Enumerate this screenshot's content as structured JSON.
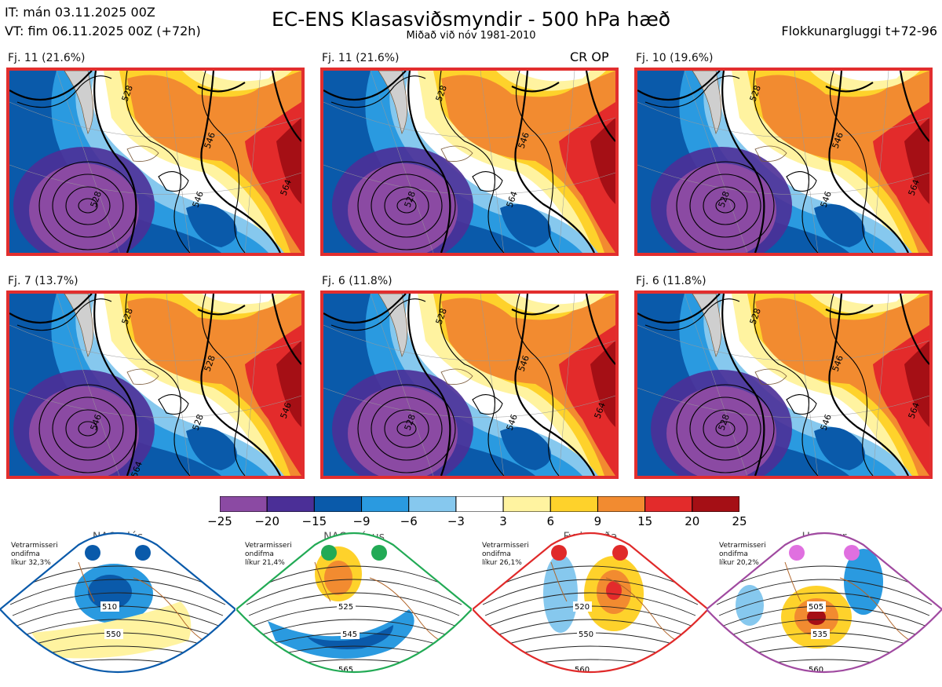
{
  "header": {
    "it_time": "IT: mán 03.11.2025 00Z",
    "vt_time": "VT: fim 06.11.2025 00Z  (+72h)",
    "title": "EC-ENS Klasasviðsmyndir - 500 hPa hæð",
    "subtitle": "Miðað við nóv 1981-2010",
    "window": "Flokkunargluggi t+72-96"
  },
  "cr_op": "CR OP",
  "panels": [
    {
      "label": "Fj. 11 (21.6%)",
      "contours": [
        "528",
        "546",
        "528",
        "546",
        "564"
      ]
    },
    {
      "label": "Fj. 11 (21.6%)",
      "contours": [
        "528",
        "546",
        "528",
        "564"
      ]
    },
    {
      "label": "Fj. 10 (19.6%)",
      "contours": [
        "528",
        "546",
        "528",
        "546",
        "564"
      ]
    },
    {
      "label": "Fj. 7 (13.7%)",
      "contours": [
        "528",
        "528",
        "546",
        "528",
        "546",
        "564"
      ]
    },
    {
      "label": "Fj. 6 (11.8%)",
      "contours": [
        "528",
        "546",
        "528",
        "546",
        "564"
      ]
    },
    {
      "label": "Fj. 6 (11.8%)",
      "contours": [
        "528",
        "546",
        "528",
        "546",
        "564"
      ]
    }
  ],
  "colorbar": {
    "ticks": [
      "−25",
      "−20",
      "−15",
      "−9",
      "−6",
      "−3",
      "3",
      "6",
      "9",
      "15",
      "20",
      "25"
    ],
    "colors": [
      "#8b4aa3",
      "#4b2f97",
      "#0a5aaa",
      "#2a9ae0",
      "#86c8ee",
      "#ffffff",
      "#fff3a0",
      "#fed22b",
      "#f28b30",
      "#e32b2b",
      "#a50f15"
    ]
  },
  "regimes": [
    {
      "name": "NAO plús",
      "note": [
        "Vetrarmisseri",
        "ondifma",
        "líkur 32,3%"
      ],
      "color": "#0a5aaa",
      "contours": [
        "510",
        "550"
      ]
    },
    {
      "name": "NAO mínus",
      "note": [
        "Vetrarmisseri",
        "ondifma",
        "líkur 21,4%"
      ],
      "color": "#22aa55",
      "contours": [
        "525",
        "545",
        "565"
      ]
    },
    {
      "name": "Fyrirstaða",
      "note": [
        "Vetrarmisseri",
        "ondifma",
        "líkur 26,1%"
      ],
      "color": "#e02a2a",
      "contours": [
        "520",
        "550",
        "560"
      ]
    },
    {
      "name": "Hryggur",
      "note": [
        "Vetrarmisseri",
        "ondifma",
        "líkur 20,2%"
      ],
      "color": "#a04aa0",
      "contours": [
        "505",
        "535",
        "560"
      ]
    }
  ]
}
